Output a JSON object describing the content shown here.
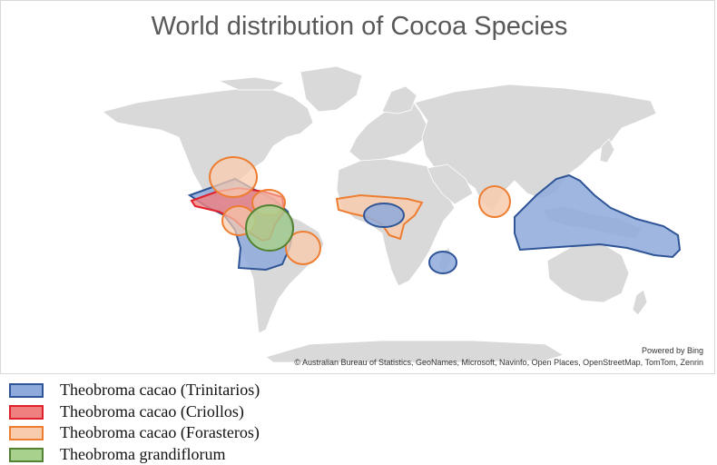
{
  "title": "World distribution of Cocoa Species",
  "attribution": {
    "powered_by": "Powered by Bing",
    "copyright": "© Australian Bureau of Statistics, GeoNames, Microsoft, Navinfo, Open Places, OpenStreetMap, TomTom, Zenrin"
  },
  "map": {
    "land_color": "#d9d9d9",
    "border_color": "#ffffff",
    "regions": [
      {
        "series": "trinitarios",
        "area": "Central America and northern South America"
      },
      {
        "series": "trinitarios",
        "area": "Gulf of Guinea"
      },
      {
        "series": "trinitarios",
        "area": "Madagascar"
      },
      {
        "series": "trinitarios",
        "area": "Southeast Asia and New Guinea"
      },
      {
        "series": "criollos",
        "area": "Mexico, Central America and Venezuela"
      },
      {
        "series": "forasteros",
        "area": "Central America"
      },
      {
        "series": "forasteros",
        "area": "Western Amazon"
      },
      {
        "series": "forasteros",
        "area": "Eastern Brazil"
      },
      {
        "series": "forasteros",
        "area": "West Africa"
      },
      {
        "series": "forasteros",
        "area": "Southern India and Sri Lanka"
      },
      {
        "series": "grandiflorum",
        "area": "Amazon basin"
      }
    ]
  },
  "legend": [
    {
      "key": "trinitarios",
      "label": "Theobroma cacao (Trinitarios)",
      "fill": "#8ea9db",
      "stroke": "#2f5597"
    },
    {
      "key": "criollos",
      "label": "Theobroma cacao (Criollos)",
      "fill": "#f08080",
      "stroke": "#e0202a"
    },
    {
      "key": "forasteros",
      "label": "Theobroma cacao (Forasteros)",
      "fill": "#f8cbad",
      "stroke": "#ed7d31"
    },
    {
      "key": "grandiflorum",
      "label": "Theobroma grandiflorum",
      "fill": "#a9d18e",
      "stroke": "#548235"
    }
  ]
}
